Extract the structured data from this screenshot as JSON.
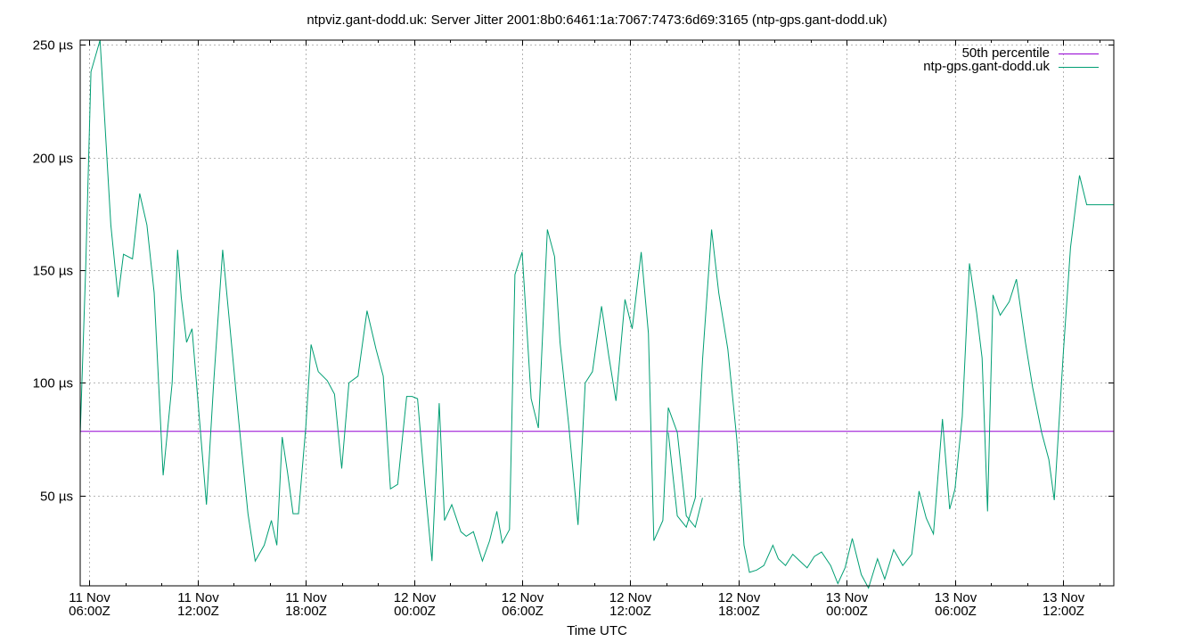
{
  "chart_data": {
    "type": "line",
    "title": "ntpviz.gant-dodd.uk: Server Jitter 2001:8b0:6461:1a:7067:7473:6d69:3165 (ntp-gps.gant-dodd.uk)",
    "xlabel": "Time UTC",
    "ylabel": "",
    "x_unit": "hours since 11 Nov 00:00Z",
    "xlim": [
      5.5,
      62.8
    ],
    "ylim": [
      10,
      252
    ],
    "grid": true,
    "legend_position": "top-right",
    "y_ticks": [
      {
        "value": 50,
        "label": "50 µs"
      },
      {
        "value": 100,
        "label": "100 µs"
      },
      {
        "value": 150,
        "label": "150 µs"
      },
      {
        "value": 200,
        "label": "200 µs"
      },
      {
        "value": 250,
        "label": "250 µs"
      }
    ],
    "x_ticks": [
      {
        "value": 6,
        "line1": "11 Nov",
        "line2": "06:00Z"
      },
      {
        "value": 12,
        "line1": "11 Nov",
        "line2": "12:00Z"
      },
      {
        "value": 18,
        "line1": "11 Nov",
        "line2": "18:00Z"
      },
      {
        "value": 24,
        "line1": "12 Nov",
        "line2": "00:00Z"
      },
      {
        "value": 30,
        "line1": "12 Nov",
        "line2": "06:00Z"
      },
      {
        "value": 36,
        "line1": "12 Nov",
        "line2": "12:00Z"
      },
      {
        "value": 42,
        "line1": "12 Nov",
        "line2": "18:00Z"
      },
      {
        "value": 48,
        "line1": "13 Nov",
        "line2": "00:00Z"
      },
      {
        "value": 54,
        "line1": "13 Nov",
        "line2": "06:00Z"
      },
      {
        "value": 60,
        "line1": "13 Nov",
        "line2": "12:00Z"
      }
    ],
    "series": [
      {
        "name": "50th percentile",
        "color": "#9400d3",
        "kind": "hline",
        "value": 78.5
      },
      {
        "name": "ntp-gps.gant-dodd.uk",
        "color": "#009e73",
        "kind": "line",
        "segments": [
          {
            "x": [
              5.5,
              5.8,
              6.1,
              6.6,
              7.2,
              7.6,
              7.9,
              8.4,
              8.8,
              9.2,
              9.6,
              10.1,
              10.6,
              10.9,
              11.1,
              11.4,
              11.7,
              12.1,
              12.5,
              12.9,
              13.4,
              13.8,
              14.3,
              14.8,
              15.2,
              15.7,
              16.1,
              16.4,
              16.7,
              17.0,
              17.3,
              17.6,
              18.0,
              18.3,
              18.7,
              19.2,
              19.6,
              20.0,
              20.4,
              20.9,
              21.4,
              21.9,
              22.3,
              22.7,
              23.1,
              23.6,
              23.9,
              24.2,
              24.6,
              25.0,
              25.4,
              25.7,
              26.1,
              26.6,
              26.9,
              27.3,
              27.8,
              28.2,
              28.6,
              28.9,
              29.3,
              29.6,
              30.0,
              30.5,
              30.9,
              31.4,
              31.8,
              32.1,
              32.6,
              33.1,
              33.5,
              33.9,
              34.4,
              34.8,
              35.2,
              35.7,
              36.1,
              36.6,
              37.0,
              37.3,
              37.8,
              38.1,
              38.6,
              39.1,
              39.6,
              40.0
            ],
            "y": [
              77,
              150,
              238,
              252,
              170,
              138,
              157,
              155,
              184,
              170,
              140,
              59,
              100,
              159,
              138,
              118,
              124,
              85,
              46,
              100,
              159,
              125,
              82,
              42,
              21,
              28,
              39,
              28,
              76,
              60,
              42,
              42,
              80,
              117,
              105,
              101,
              95,
              62,
              100,
              103,
              132,
              115,
              103,
              53,
              55,
              94,
              94,
              93,
              55,
              21,
              91,
              39,
              46,
              34,
              32,
              34,
              21,
              30,
              43,
              29,
              35,
              148,
              158,
              93,
              80,
              168,
              156,
              118,
              80,
              37,
              100,
              105,
              134,
              112,
              92,
              137,
              124,
              158,
              122,
              30,
              39,
              89,
              78,
              41,
              36,
              49
            ]
          },
          {
            "x": [
              38.1,
              38.6,
              39.1,
              39.6,
              40.0,
              40.5,
              40.9,
              41.4,
              41.9,
              42.3,
              42.6,
              43.0,
              43.4,
              43.9,
              44.2,
              44.6,
              45.0,
              45.4,
              45.8,
              46.2,
              46.6,
              47.1,
              47.5,
              47.9,
              48.3,
              48.8,
              49.2,
              49.7,
              50.1,
              50.6,
              51.1,
              51.6,
              52.0,
              52.4,
              52.8,
              53.3,
              53.7,
              54.0,
              54.4,
              54.8,
              55.2,
              55.5,
              55.8,
              56.1,
              56.5,
              57.0,
              57.4,
              57.9,
              58.3,
              58.8,
              59.2,
              59.5,
              60.0,
              60.4,
              60.9,
              61.3,
              61.8,
              62.2,
              62.8
            ],
            "y": [
              78,
              41,
              36,
              49,
              110,
              168,
              140,
              115,
              75,
              28,
              16,
              17,
              19,
              28,
              22,
              19,
              24,
              21,
              18,
              23,
              25,
              19,
              11,
              18,
              31,
              15,
              9,
              22,
              13,
              26,
              19,
              24,
              52,
              40,
              33,
              84,
              44,
              53,
              85,
              153,
              131,
              111,
              43,
              139,
              130,
              136,
              146,
              118,
              98,
              78,
              66,
              48,
              113,
              160,
              192,
              179,
              179,
              179,
              179
            ]
          }
        ]
      }
    ]
  }
}
